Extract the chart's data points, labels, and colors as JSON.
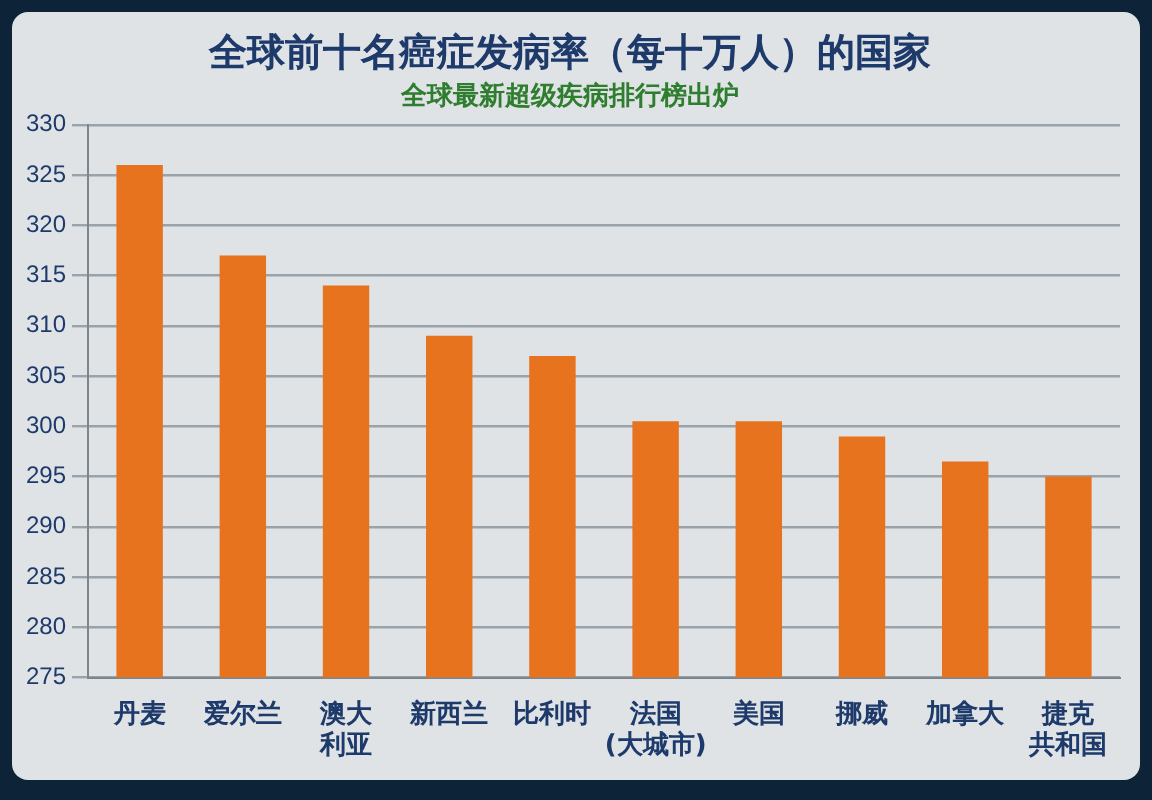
{
  "chart_data": {
    "type": "bar",
    "title": "全球前十名癌症发病率（每十万人）的国家",
    "subtitle": "全球最新超级疾病排行榜出炉",
    "categories": [
      "丹麦",
      "爱尔兰",
      "澳大利亚",
      "新西兰",
      "比利时",
      "法国(大城市)",
      "美国",
      "挪威",
      "加拿大",
      "捷克共和国"
    ],
    "values": [
      326,
      317,
      314,
      309,
      307,
      300.5,
      300.5,
      299,
      296.5,
      295
    ],
    "color": "#e8731f",
    "ylim": [
      275,
      330
    ],
    "yticks": [
      275,
      280,
      285,
      290,
      295,
      300,
      305,
      310,
      315,
      320,
      325,
      330
    ],
    "grid": "y"
  }
}
